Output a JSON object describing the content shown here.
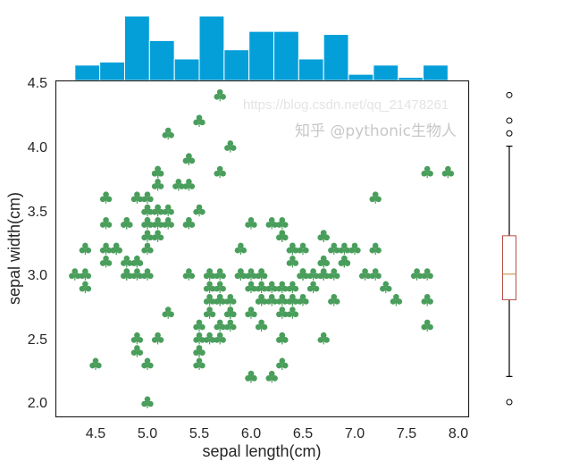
{
  "chart_data": [
    {
      "type": "scatter",
      "xlabel": "sepal length(cm)",
      "ylabel": "sepal width(cm)",
      "xlim": [
        4.12,
        8.08
      ],
      "ylim": [
        1.88,
        4.52
      ],
      "xticks": [
        "4.5",
        "5.0",
        "5.5",
        "6.0",
        "6.5",
        "7.0",
        "7.5",
        "8.0"
      ],
      "yticks": [
        "2.0",
        "2.5",
        "3.0",
        "3.5",
        "4.0",
        "4.5"
      ],
      "grid": false,
      "marker": "club",
      "color": "#4a9e5c",
      "x": [
        5.1,
        4.9,
        4.7,
        4.6,
        5.0,
        5.4,
        4.6,
        5.0,
        4.4,
        4.9,
        5.4,
        4.8,
        4.8,
        4.3,
        5.8,
        5.7,
        5.4,
        5.1,
        5.7,
        5.1,
        5.4,
        5.1,
        4.6,
        5.1,
        4.8,
        5.0,
        5.0,
        5.2,
        5.2,
        4.7,
        4.8,
        5.4,
        5.2,
        5.5,
        4.9,
        5.0,
        5.5,
        4.9,
        4.4,
        5.1,
        5.0,
        4.5,
        4.4,
        5.0,
        5.1,
        4.8,
        5.1,
        4.6,
        5.3,
        5.0,
        7.0,
        6.4,
        6.9,
        5.5,
        6.5,
        5.7,
        6.3,
        4.9,
        6.6,
        5.2,
        5.0,
        5.9,
        6.0,
        6.1,
        5.6,
        6.7,
        5.6,
        5.8,
        6.2,
        5.6,
        5.9,
        6.1,
        6.3,
        6.1,
        6.4,
        6.6,
        6.8,
        6.7,
        6.0,
        5.7,
        5.5,
        5.5,
        5.8,
        6.0,
        5.4,
        6.0,
        6.7,
        6.3,
        5.6,
        5.5,
        5.5,
        6.1,
        5.8,
        5.0,
        5.6,
        5.7,
        5.7,
        6.2,
        5.1,
        5.7,
        6.3,
        5.8,
        7.1,
        6.3,
        6.5,
        7.6,
        4.9,
        7.3,
        6.7,
        7.2,
        6.5,
        6.4,
        6.8,
        5.7,
        5.8,
        6.4,
        6.5,
        7.7,
        7.7,
        6.0,
        6.9,
        5.6,
        7.7,
        6.3,
        6.7,
        7.2,
        6.2,
        6.1,
        6.4,
        7.2,
        7.4,
        7.9,
        6.4,
        6.3,
        6.1,
        7.7,
        6.3,
        6.4,
        6.0,
        6.9,
        6.7,
        6.9,
        5.8,
        6.8,
        6.7,
        6.7,
        6.3,
        6.5,
        6.2,
        5.9
      ],
      "y": [
        3.5,
        3.0,
        3.2,
        3.1,
        3.6,
        3.9,
        3.4,
        3.4,
        2.9,
        3.1,
        3.7,
        3.4,
        3.0,
        3.0,
        4.0,
        4.4,
        3.9,
        3.5,
        3.8,
        3.8,
        3.4,
        3.7,
        3.6,
        3.3,
        3.4,
        3.0,
        3.4,
        3.5,
        3.4,
        3.2,
        3.1,
        3.4,
        4.1,
        4.2,
        3.1,
        3.2,
        3.5,
        3.6,
        3.0,
        3.4,
        3.5,
        2.3,
        3.2,
        3.5,
        3.8,
        3.0,
        3.8,
        3.2,
        3.7,
        3.3,
        3.2,
        3.2,
        3.1,
        2.3,
        2.8,
        2.8,
        3.3,
        2.4,
        2.9,
        2.7,
        2.0,
        3.0,
        2.2,
        2.9,
        2.9,
        3.1,
        3.0,
        2.7,
        2.2,
        2.5,
        3.2,
        2.8,
        2.5,
        2.8,
        2.9,
        3.0,
        2.8,
        3.0,
        2.9,
        2.6,
        2.4,
        2.4,
        2.7,
        2.7,
        3.0,
        3.4,
        3.1,
        2.3,
        3.0,
        2.5,
        2.6,
        3.0,
        2.6,
        2.3,
        2.7,
        3.0,
        2.9,
        2.9,
        2.5,
        2.8,
        3.3,
        2.7,
        3.0,
        2.9,
        3.0,
        3.0,
        2.5,
        2.9,
        2.5,
        3.6,
        3.2,
        2.7,
        3.0,
        2.5,
        2.8,
        3.2,
        3.0,
        3.8,
        2.6,
        2.2,
        3.2,
        2.8,
        2.8,
        2.7,
        3.3,
        3.2,
        2.8,
        3.0,
        2.8,
        3.0,
        2.8,
        3.8,
        2.8,
        2.8,
        2.6,
        3.0,
        3.4,
        3.1,
        3.0,
        3.1,
        3.1,
        3.1,
        2.7,
        3.2,
        3.3,
        3.0,
        2.5,
        3.0,
        3.4,
        3.0
      ]
    },
    {
      "type": "bar",
      "subtype": "histogram",
      "variable": "sepal length(cm)",
      "bin_edges": [
        4.3,
        4.54,
        4.78,
        5.02,
        5.26,
        5.5,
        5.74,
        5.98,
        6.22,
        6.46,
        6.7,
        6.94,
        7.18,
        7.42,
        7.66,
        7.9
      ],
      "values": [
        5,
        6,
        21,
        13,
        7,
        21,
        10,
        16,
        16,
        7,
        15,
        2,
        5,
        1,
        5
      ],
      "color": "#049fd9"
    },
    {
      "type": "box",
      "variable": "sepal width(cm)",
      "whisker_low": 2.2,
      "q1": 2.8,
      "median": 3.0,
      "q3": 3.3,
      "whisker_high": 4.0,
      "outliers": [
        4.4,
        4.2,
        4.1,
        2.0
      ],
      "box_color": "#b5524a",
      "median_color": "#c8823c"
    }
  ],
  "watermark": {
    "zhihu": "知乎 @pythonic生物人",
    "blog": "https://blog.csdn.net/qq_21478261"
  }
}
